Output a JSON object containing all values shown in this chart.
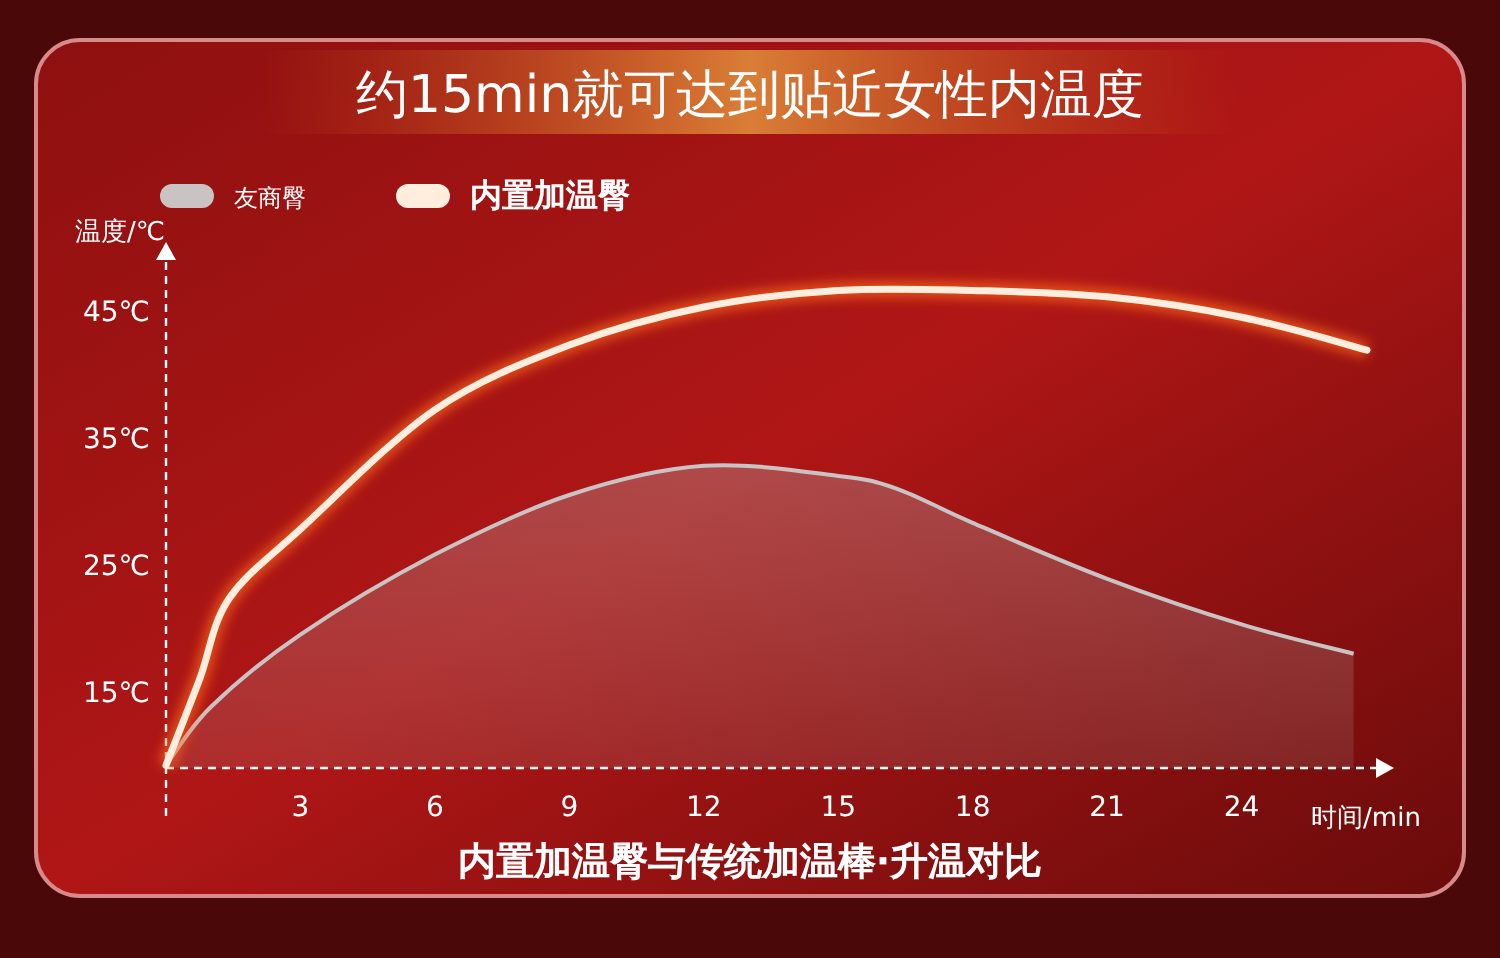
{
  "chart_data": {
    "type": "line",
    "title": "约15min就可达到贴近女性内温度",
    "xlabel": "时间/min",
    "ylabel": "温度/℃",
    "annotations": [
      "内置加温臀与传统加温棒·升温对比"
    ],
    "xlim": [
      0,
      27
    ],
    "xticks": [
      3,
      6,
      9,
      12,
      15,
      18,
      21,
      24
    ],
    "ylim": [
      9,
      49
    ],
    "yticks": [
      {
        "value": 15,
        "label": "15℃"
      },
      {
        "value": 25,
        "label": "25℃"
      },
      {
        "value": 35,
        "label": "35℃"
      },
      {
        "value": 45,
        "label": "45℃"
      }
    ],
    "legend": "top left",
    "series": [
      {
        "name": "友商臀",
        "type": "area",
        "color": "#c9c3c3",
        "x": [
          0,
          1,
          3,
          6,
          9,
          12,
          15,
          16.3,
          18,
          21,
          24,
          26.5
        ],
        "values": [
          9.2,
          13.8,
          19.5,
          25.8,
          30.5,
          32.8,
          32,
          31,
          28.3,
          23.9,
          20.3,
          18
        ]
      },
      {
        "name": "内置加温臀",
        "type": "line",
        "color": "#ffeedd",
        "x": [
          0,
          0.75,
          1.4,
          3,
          6,
          9,
          12,
          15,
          18,
          21,
          24,
          26.8
        ],
        "values": [
          9.2,
          16,
          22.3,
          27.8,
          37.2,
          42.3,
          45.3,
          46.6,
          46.6,
          46.1,
          44.5,
          41.9
        ]
      }
    ]
  }
}
